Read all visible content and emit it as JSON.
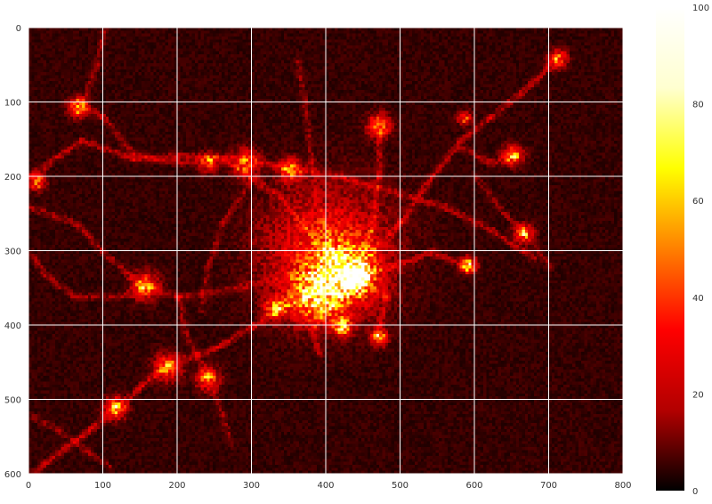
{
  "chart_data": {
    "type": "heatmap",
    "title": "",
    "xlabel": "",
    "ylabel": "",
    "xlim": [
      0,
      800
    ],
    "ylim": [
      600,
      0
    ],
    "x_ticks": [
      0,
      100,
      200,
      300,
      400,
      500,
      600,
      700,
      800
    ],
    "y_ticks": [
      0,
      100,
      200,
      300,
      400,
      500,
      600
    ],
    "grid": true,
    "colormap": "hot",
    "colorbar": {
      "range": [
        0,
        100
      ],
      "ticks": [
        0,
        20,
        40,
        60,
        80,
        100
      ],
      "colors": [
        "#000000",
        "#b30000",
        "#ff0000",
        "#ff8000",
        "#ffff00",
        "#ffffd0",
        "#ffffff"
      ]
    },
    "background_value": 5,
    "hotspots": [
      {
        "x": 440,
        "y": 335,
        "sigma": 10,
        "value": 100
      },
      {
        "x": 420,
        "y": 330,
        "sigma": 28,
        "value": 55
      },
      {
        "x": 400,
        "y": 300,
        "sigma": 55,
        "value": 30
      },
      {
        "x": 380,
        "y": 360,
        "sigma": 22,
        "value": 45
      },
      {
        "x": 470,
        "y": 130,
        "sigma": 10,
        "value": 45
      },
      {
        "x": 590,
        "y": 318,
        "sigma": 7,
        "value": 60
      },
      {
        "x": 665,
        "y": 275,
        "sigma": 8,
        "value": 45
      },
      {
        "x": 650,
        "y": 170,
        "sigma": 9,
        "value": 40
      },
      {
        "x": 585,
        "y": 120,
        "sigma": 6,
        "value": 35
      },
      {
        "x": 710,
        "y": 40,
        "sigma": 8,
        "value": 35
      },
      {
        "x": 65,
        "y": 105,
        "sigma": 8,
        "value": 55
      },
      {
        "x": 10,
        "y": 205,
        "sigma": 7,
        "value": 50
      },
      {
        "x": 155,
        "y": 345,
        "sigma": 12,
        "value": 40
      },
      {
        "x": 115,
        "y": 510,
        "sigma": 9,
        "value": 55
      },
      {
        "x": 185,
        "y": 455,
        "sigma": 12,
        "value": 35
      },
      {
        "x": 240,
        "y": 470,
        "sigma": 10,
        "value": 40
      },
      {
        "x": 290,
        "y": 180,
        "sigma": 12,
        "value": 35
      },
      {
        "x": 350,
        "y": 190,
        "sigma": 10,
        "value": 40
      },
      {
        "x": 240,
        "y": 180,
        "sigma": 8,
        "value": 35
      },
      {
        "x": 470,
        "y": 415,
        "sigma": 7,
        "value": 55
      },
      {
        "x": 420,
        "y": 400,
        "sigma": 8,
        "value": 60
      },
      {
        "x": 330,
        "y": 375,
        "sigma": 10,
        "value": 40
      }
    ],
    "roads": [
      {
        "points": [
          [
            0,
            200
          ],
          [
            40,
            170
          ],
          [
            70,
            150
          ],
          [
            140,
            175
          ],
          [
            200,
            170
          ],
          [
            290,
            175
          ],
          [
            360,
            190
          ],
          [
            420,
            200
          ],
          [
            490,
            220
          ],
          [
            560,
            240
          ],
          [
            620,
            270
          ],
          [
            680,
            310
          ]
        ],
        "value": 22
      },
      {
        "points": [
          [
            0,
            600
          ],
          [
            40,
            570
          ],
          [
            80,
            540
          ],
          [
            120,
            510
          ],
          [
            150,
            480
          ],
          [
            190,
            450
          ],
          [
            250,
            430
          ],
          [
            300,
            400
          ],
          [
            350,
            370
          ],
          [
            420,
            340
          ]
        ],
        "value": 25
      },
      {
        "points": [
          [
            70,
            100
          ],
          [
            100,
            120
          ],
          [
            140,
            170
          ],
          [
            200,
            180
          ],
          [
            260,
            175
          ],
          [
            300,
            200
          ],
          [
            340,
            230
          ],
          [
            390,
            290
          ],
          [
            430,
            330
          ]
        ],
        "value": 20
      },
      {
        "points": [
          [
            720,
            30
          ],
          [
            680,
            70
          ],
          [
            620,
            120
          ],
          [
            580,
            150
          ],
          [
            540,
            200
          ],
          [
            500,
            260
          ],
          [
            460,
            300
          ],
          [
            440,
            330
          ]
        ],
        "value": 22
      },
      {
        "points": [
          [
            580,
            160
          ],
          [
            620,
            180
          ],
          [
            660,
            170
          ]
        ],
        "value": 22
      },
      {
        "points": [
          [
            440,
            330
          ],
          [
            460,
            270
          ],
          [
            470,
            200
          ],
          [
            470,
            130
          ]
        ],
        "value": 22
      },
      {
        "points": [
          [
            440,
            330
          ],
          [
            490,
            320
          ],
          [
            540,
            300
          ],
          [
            590,
            320
          ]
        ],
        "value": 24
      },
      {
        "points": [
          [
            440,
            335
          ],
          [
            480,
            360
          ],
          [
            470,
            400
          ],
          [
            470,
            415
          ]
        ],
        "value": 20
      },
      {
        "points": [
          [
            440,
            335
          ],
          [
            400,
            380
          ],
          [
            380,
            400
          ],
          [
            390,
            440
          ]
        ],
        "value": 22
      },
      {
        "points": [
          [
            0,
            240
          ],
          [
            60,
            260
          ],
          [
            110,
            310
          ],
          [
            150,
            345
          ],
          [
            200,
            360
          ],
          [
            270,
            350
          ],
          [
            320,
            340
          ],
          [
            380,
            330
          ]
        ],
        "value": 18
      },
      {
        "points": [
          [
            0,
            300
          ],
          [
            20,
            330
          ],
          [
            60,
            360
          ],
          [
            120,
            360
          ],
          [
            160,
            350
          ]
        ],
        "value": 16
      },
      {
        "points": [
          [
            200,
            360
          ],
          [
            210,
            410
          ],
          [
            240,
            470
          ],
          [
            260,
            520
          ],
          [
            270,
            560
          ]
        ],
        "value": 16
      },
      {
        "points": [
          [
            300,
            200
          ],
          [
            260,
            260
          ],
          [
            240,
            320
          ],
          [
            230,
            380
          ]
        ],
        "value": 14
      },
      {
        "points": [
          [
            100,
            0
          ],
          [
            90,
            50
          ],
          [
            70,
            100
          ]
        ],
        "value": 14
      },
      {
        "points": [
          [
            420,
            330
          ],
          [
            390,
            250
          ],
          [
            380,
            180
          ],
          [
            370,
            100
          ],
          [
            360,
            40
          ]
        ],
        "value": 14
      },
      {
        "points": [
          [
            600,
            200
          ],
          [
            640,
            250
          ],
          [
            665,
            275
          ],
          [
            700,
            320
          ]
        ],
        "value": 14
      },
      {
        "points": [
          [
            0,
            520
          ],
          [
            40,
            540
          ],
          [
            80,
            570
          ],
          [
            110,
            590
          ]
        ],
        "value": 14
      }
    ]
  }
}
